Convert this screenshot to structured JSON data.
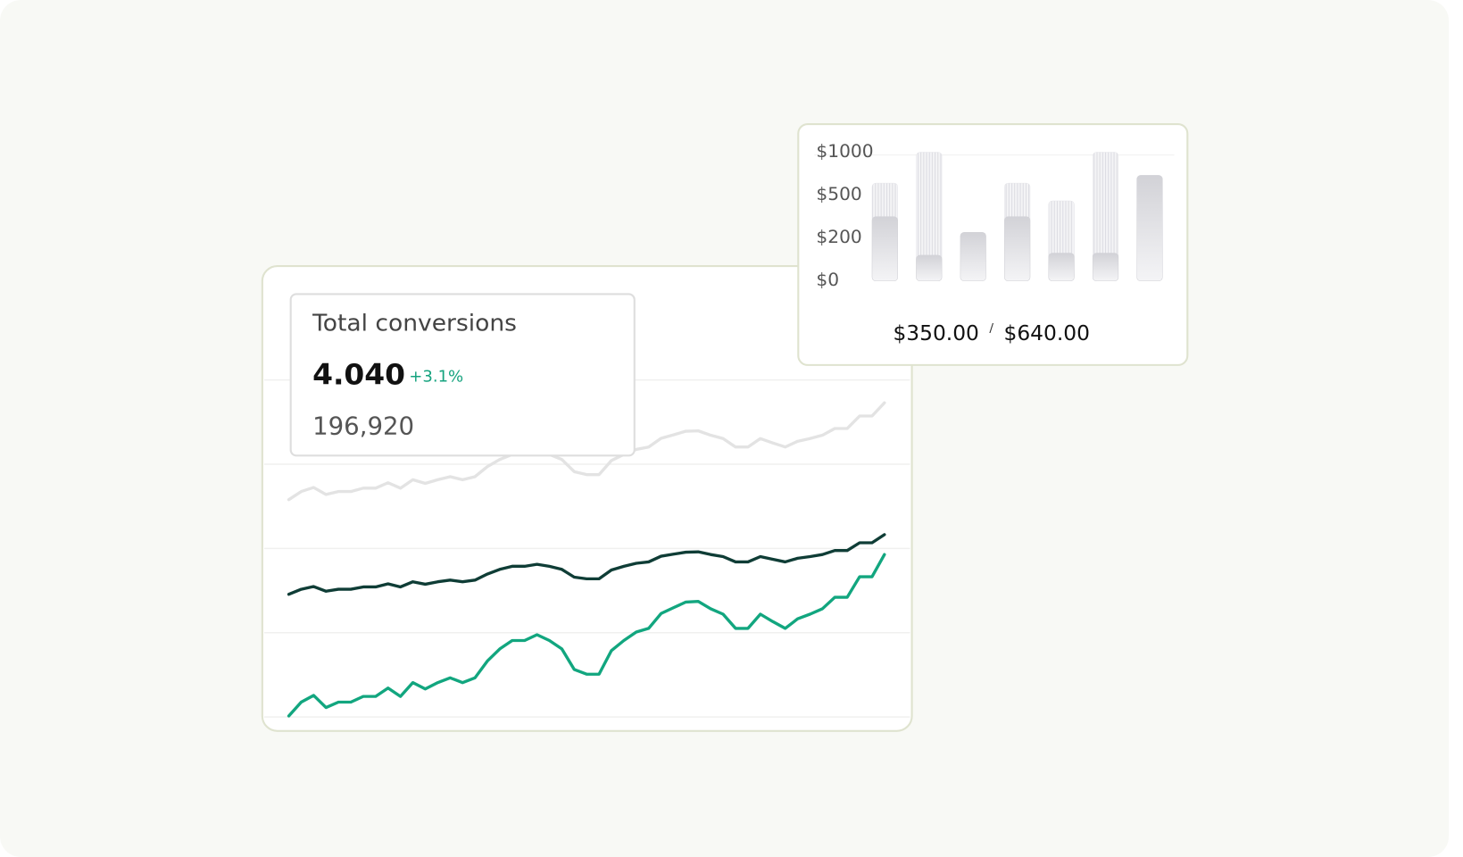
{
  "kpi": {
    "title": "Total conversions",
    "value": "4.040",
    "change": "+3.1%",
    "secondary": "196,920"
  },
  "chart_data": [
    {
      "type": "line",
      "ylim": [
        0,
        100
      ],
      "grid": true,
      "series": [
        {
          "color": "#e3e3e3",
          "values": [
            64.5,
            66.9,
            68.1,
            66.0,
            66.9,
            66.9,
            67.9,
            67.9,
            69.5,
            67.9,
            70.4,
            69.3,
            70.4,
            71.3,
            70.4,
            71.3,
            74.3,
            76.4,
            77.9,
            77.9,
            78.9,
            77.9,
            76.4,
            72.8,
            71.9,
            71.9,
            76.1,
            77.9,
            79.4,
            80.1,
            82.7,
            83.7,
            84.8,
            84.9,
            83.6,
            82.6,
            80.1,
            80.1,
            82.6,
            81.3,
            80.1,
            81.8,
            82.6,
            83.6,
            85.6,
            85.6,
            89.3,
            89.3,
            93.2
          ]
        },
        {
          "color": "#0f3d36",
          "values": [
            36.4,
            37.9,
            38.7,
            37.3,
            37.9,
            37.9,
            38.6,
            38.6,
            39.5,
            38.6,
            40.1,
            39.4,
            40.1,
            40.6,
            40.1,
            40.6,
            42.4,
            43.8,
            44.7,
            44.7,
            45.3,
            44.7,
            43.8,
            41.5,
            41.0,
            41.0,
            43.6,
            44.7,
            45.6,
            46.0,
            47.7,
            48.3,
            48.9,
            49.0,
            48.2,
            47.6,
            46.0,
            46.0,
            47.6,
            46.8,
            46.0,
            47.1,
            47.6,
            48.2,
            49.4,
            49.4,
            51.7,
            51.7,
            54.1
          ]
        },
        {
          "color": "#12a67f",
          "values": [
            0.3,
            4.4,
            6.4,
            2.8,
            4.4,
            4.4,
            6.1,
            6.1,
            8.6,
            6.1,
            10.2,
            8.3,
            10.2,
            11.6,
            10.2,
            11.6,
            16.6,
            20.2,
            22.7,
            22.7,
            24.4,
            22.7,
            20.2,
            14.1,
            12.7,
            12.7,
            19.7,
            22.7,
            25.2,
            26.3,
            30.7,
            32.4,
            34.1,
            34.3,
            32.1,
            30.5,
            26.3,
            26.3,
            30.5,
            28.3,
            26.3,
            29.1,
            30.5,
            32.1,
            35.5,
            35.5,
            41.6,
            41.6,
            48.2
          ]
        }
      ]
    },
    {
      "type": "bar",
      "ylim": [
        0,
        1000
      ],
      "yticks": [
        {
          "value": 0,
          "label": "$0"
        },
        {
          "value": 200,
          "label": "$200"
        },
        {
          "value": 500,
          "label": "$500"
        },
        {
          "value": 1000,
          "label": "$1000"
        }
      ],
      "series": [
        {
          "color": "#e6e6ea",
          "values": [
            640,
            1000,
            null,
            640,
            460,
            1000,
            null
          ]
        },
        {
          "color": "#d2d2d7",
          "values": [
            350,
            120,
            240,
            350,
            130,
            130,
            730
          ]
        }
      ],
      "summary": [
        "$350.00",
        "$640.00"
      ],
      "separator": "/"
    }
  ]
}
